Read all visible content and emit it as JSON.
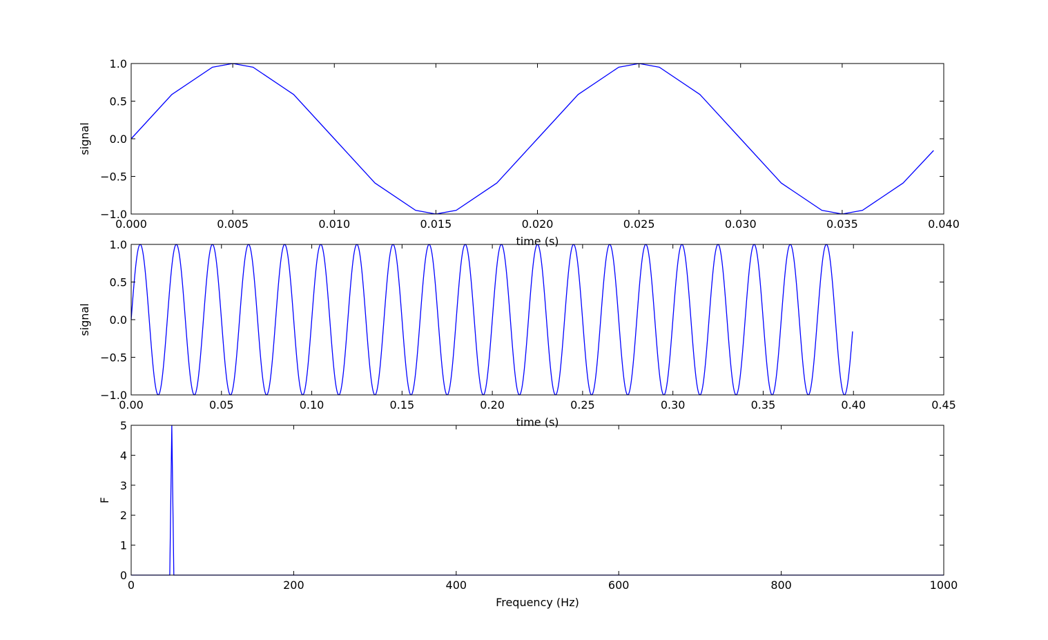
{
  "chart_data": [
    {
      "type": "line",
      "title": "",
      "xlabel": "time (s)",
      "ylabel": "signal",
      "xlim": [
        0.0,
        0.04
      ],
      "ylim": [
        -1.0,
        1.0
      ],
      "xticks": [
        "0.000",
        "0.005",
        "0.010",
        "0.015",
        "0.020",
        "0.025",
        "0.030",
        "0.035",
        "0.040"
      ],
      "xtick_values": [
        0.0,
        0.005,
        0.01,
        0.015,
        0.02,
        0.025,
        0.03,
        0.035,
        0.04
      ],
      "yticks": [
        "−1.0",
        "−0.5",
        "0.0",
        "0.5",
        "1.0"
      ],
      "ytick_values": [
        -1.0,
        -0.5,
        0.0,
        0.5,
        1.0
      ],
      "grid": false,
      "series": [
        {
          "color": "#0000ff",
          "x": [
            0.0,
            0.002,
            0.004,
            0.005,
            0.006,
            0.008,
            0.01,
            0.012,
            0.014,
            0.015,
            0.016,
            0.018,
            0.02,
            0.022,
            0.024,
            0.025,
            0.026,
            0.028,
            0.03,
            0.032,
            0.034,
            0.035,
            0.036,
            0.038,
            0.0395
          ],
          "y": [
            0.0,
            0.588,
            0.951,
            1.0,
            0.951,
            0.588,
            0.0,
            -0.588,
            -0.951,
            -1.0,
            -0.951,
            -0.588,
            0.0,
            0.588,
            0.951,
            1.0,
            0.951,
            0.588,
            0.0,
            -0.588,
            -0.951,
            -1.0,
            -0.951,
            -0.588,
            -0.156
          ]
        }
      ]
    },
    {
      "type": "line",
      "title": "",
      "xlabel": "time (s)",
      "ylabel": "signal",
      "xlim": [
        0.0,
        0.45
      ],
      "ylim": [
        -1.0,
        1.0
      ],
      "xticks": [
        "0.00",
        "0.05",
        "0.10",
        "0.15",
        "0.20",
        "0.25",
        "0.30",
        "0.35",
        "0.40",
        "0.45"
      ],
      "xtick_values": [
        0.0,
        0.05,
        0.1,
        0.15,
        0.2,
        0.25,
        0.3,
        0.35,
        0.4,
        0.45
      ],
      "yticks": [
        "−1.0",
        "−0.5",
        "0.0",
        "0.5",
        "1.0"
      ],
      "ytick_values": [
        -1.0,
        -0.5,
        0.0,
        0.5,
        1.0
      ],
      "grid": false,
      "series": [
        {
          "color": "#0000ff",
          "function": "sin(2*pi*50*t)",
          "frequency_hz": 50,
          "amplitude": 1.0,
          "t_start": 0.0,
          "t_end": 0.3995
        }
      ]
    },
    {
      "type": "line",
      "title": "",
      "xlabel": "Frequency (Hz)",
      "ylabel": "F",
      "xlim": [
        0,
        1000
      ],
      "ylim": [
        0,
        5
      ],
      "xticks": [
        "0",
        "200",
        "400",
        "600",
        "800",
        "1000"
      ],
      "xtick_values": [
        0,
        200,
        400,
        600,
        800,
        1000
      ],
      "yticks": [
        "0",
        "1",
        "2",
        "3",
        "4",
        "5"
      ],
      "ytick_values": [
        0,
        1,
        2,
        3,
        4,
        5
      ],
      "grid": false,
      "series": [
        {
          "color": "#0000ff",
          "x": [
            0,
            45,
            47.5,
            50,
            52.5,
            55,
            1000
          ],
          "y": [
            0,
            0,
            0,
            5,
            0,
            0,
            0
          ]
        }
      ]
    }
  ]
}
